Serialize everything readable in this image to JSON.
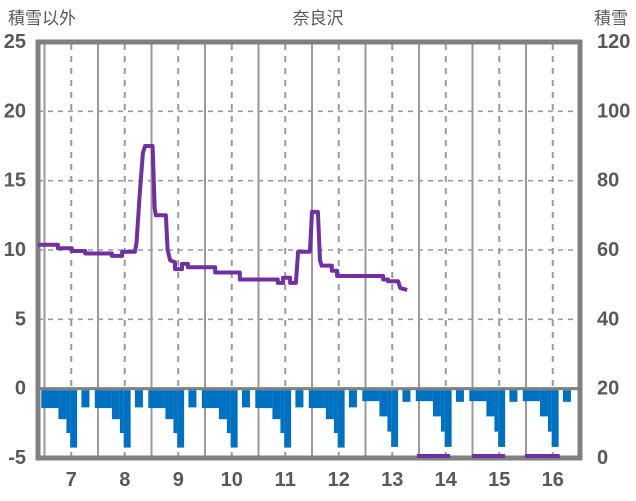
{
  "header": {
    "left_axis_title": "積雪以外",
    "title": "奈良沢",
    "right_axis_title": "積雪"
  },
  "colors": {
    "line_purple": "#7030A0",
    "bar_blue": "#0070C0",
    "axis_gray": "#808080",
    "grid_gray": "#9a9a9a",
    "text_gray": "#595959",
    "background": "#ffffff"
  },
  "chart_data": {
    "type": "line+bar",
    "title": "奈良沢",
    "grid": "on",
    "left_axis": {
      "label": "積雪以外",
      "min": -5,
      "max": 25,
      "ticks": [
        25,
        20,
        15,
        10,
        5,
        0,
        -5
      ]
    },
    "right_axis": {
      "label": "積雪",
      "min": 0,
      "max": 120,
      "ticks": [
        120,
        100,
        80,
        60,
        40,
        20,
        0
      ]
    },
    "x_axis": {
      "labels": [
        "7",
        "8",
        "9",
        "10",
        "11",
        "12",
        "13",
        "14",
        "15",
        "16"
      ],
      "label_days": [
        7,
        8,
        9,
        10,
        11,
        12,
        13,
        14,
        15,
        16
      ],
      "min_day": 6.88,
      "max_day": 17.01
    },
    "series": [
      {
        "name": "積雪",
        "type": "line",
        "axis": "right",
        "color": "#7030A0",
        "points": [
          [
            6.88,
            61.5
          ],
          [
            7.25,
            61.5
          ],
          [
            7.25,
            60.5
          ],
          [
            7.51,
            60.5
          ],
          [
            7.51,
            59.7
          ],
          [
            7.76,
            59.7
          ],
          [
            7.76,
            59.0
          ],
          [
            8.26,
            59.0
          ],
          [
            8.26,
            58.3
          ],
          [
            8.45,
            58.3
          ],
          [
            8.45,
            59.5
          ],
          [
            8.69,
            59.5
          ],
          [
            8.72,
            62.0
          ],
          [
            8.78,
            76.0
          ],
          [
            8.84,
            88.0
          ],
          [
            8.88,
            90.0
          ],
          [
            9.02,
            90.0
          ],
          [
            9.06,
            72.0
          ],
          [
            9.08,
            70.0
          ],
          [
            9.27,
            70.0
          ],
          [
            9.3,
            60.0
          ],
          [
            9.35,
            57.0
          ],
          [
            9.44,
            56.5
          ],
          [
            9.44,
            54.5
          ],
          [
            9.57,
            54.5
          ],
          [
            9.57,
            56.0
          ],
          [
            9.68,
            56.0
          ],
          [
            9.68,
            55.0
          ],
          [
            10.19,
            55.0
          ],
          [
            10.19,
            53.5
          ],
          [
            10.65,
            53.5
          ],
          [
            10.65,
            51.5
          ],
          [
            11.36,
            51.5
          ],
          [
            11.36,
            50.5
          ],
          [
            11.46,
            50.5
          ],
          [
            11.46,
            52.0
          ],
          [
            11.59,
            52.0
          ],
          [
            11.59,
            50.5
          ],
          [
            11.7,
            50.5
          ],
          [
            11.74,
            59.5
          ],
          [
            11.96,
            59.5
          ],
          [
            12.0,
            71.0
          ],
          [
            12.11,
            71.0
          ],
          [
            12.15,
            57.0
          ],
          [
            12.18,
            55.5
          ],
          [
            12.37,
            55.5
          ],
          [
            12.37,
            54.0
          ],
          [
            12.47,
            54.0
          ],
          [
            12.47,
            52.5
          ],
          [
            13.33,
            52.5
          ],
          [
            13.33,
            51.5
          ],
          [
            13.42,
            51.5
          ],
          [
            13.42,
            51.0
          ],
          [
            13.61,
            51.0
          ],
          [
            13.65,
            49.0
          ],
          [
            13.78,
            48.5
          ]
        ],
        "zero_value_segments": [
          [
            13.96,
            14.58
          ],
          [
            14.99,
            15.61
          ],
          [
            15.98,
            16.63
          ]
        ]
      },
      {
        "name": "積雪以外",
        "type": "bar",
        "axis": "left",
        "color": "#0070C0",
        "bars": [
          [
            6.94,
            7.26,
            -1.4
          ],
          [
            7.26,
            7.41,
            -2.2
          ],
          [
            7.41,
            7.48,
            -3.2
          ],
          [
            7.48,
            7.61,
            -4.25
          ],
          [
            7.69,
            7.84,
            -1.35
          ],
          [
            7.94,
            8.26,
            -1.4
          ],
          [
            8.26,
            8.41,
            -2.2
          ],
          [
            8.41,
            8.48,
            -3.2
          ],
          [
            8.48,
            8.61,
            -4.25
          ],
          [
            8.69,
            8.84,
            -1.35
          ],
          [
            8.94,
            9.26,
            -1.4
          ],
          [
            9.26,
            9.41,
            -2.2
          ],
          [
            9.41,
            9.48,
            -3.2
          ],
          [
            9.48,
            9.61,
            -4.25
          ],
          [
            9.69,
            9.84,
            -1.35
          ],
          [
            9.94,
            10.26,
            -1.4
          ],
          [
            10.26,
            10.41,
            -2.2
          ],
          [
            10.41,
            10.48,
            -3.2
          ],
          [
            10.48,
            10.61,
            -4.25
          ],
          [
            10.69,
            10.84,
            -1.35
          ],
          [
            10.94,
            11.26,
            -1.4
          ],
          [
            11.26,
            11.41,
            -2.2
          ],
          [
            11.41,
            11.48,
            -3.2
          ],
          [
            11.48,
            11.61,
            -4.25
          ],
          [
            11.69,
            11.84,
            -1.35
          ],
          [
            11.94,
            12.26,
            -1.4
          ],
          [
            12.26,
            12.41,
            -2.2
          ],
          [
            12.41,
            12.48,
            -3.2
          ],
          [
            12.48,
            12.61,
            -4.25
          ],
          [
            12.69,
            12.84,
            -1.35
          ],
          [
            12.94,
            13.26,
            -0.9
          ],
          [
            13.26,
            13.41,
            -2.0
          ],
          [
            13.41,
            13.48,
            -3.1
          ],
          [
            13.48,
            13.61,
            -4.2
          ],
          [
            13.69,
            13.84,
            -0.95
          ],
          [
            13.94,
            14.26,
            -0.9
          ],
          [
            14.26,
            14.41,
            -2.0
          ],
          [
            14.41,
            14.48,
            -3.1
          ],
          [
            14.48,
            14.61,
            -4.2
          ],
          [
            14.69,
            14.84,
            -0.95
          ],
          [
            14.94,
            15.26,
            -0.9
          ],
          [
            15.26,
            15.41,
            -2.0
          ],
          [
            15.41,
            15.48,
            -3.1
          ],
          [
            15.48,
            15.61,
            -4.2
          ],
          [
            15.69,
            15.84,
            -0.95
          ],
          [
            15.94,
            16.26,
            -0.9
          ],
          [
            16.26,
            16.41,
            -2.0
          ],
          [
            16.41,
            16.48,
            -3.1
          ],
          [
            16.48,
            16.61,
            -4.2
          ],
          [
            16.69,
            16.84,
            -0.95
          ]
        ]
      }
    ]
  }
}
